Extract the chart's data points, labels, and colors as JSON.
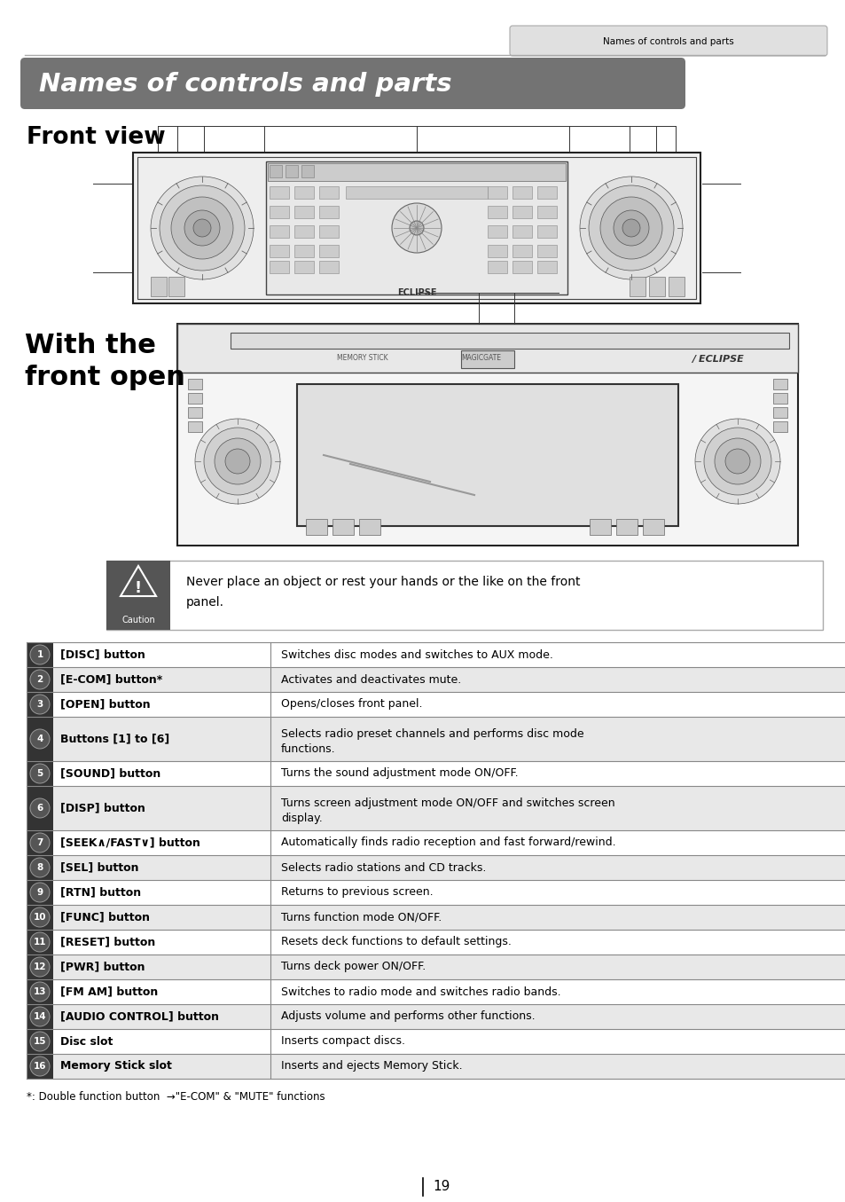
{
  "page_header": "Names of controls and parts",
  "chapter_title": "Names of controls and parts",
  "section1_title": "Front view",
  "section2_title": "With the\nfront open",
  "caution_text": "Never place an object or rest your hands or the like on the front panel.",
  "footnote": "*: Double function button  →\"E-COM\" & \"MUTE\" functions",
  "page_number": "19",
  "table_rows": [
    {
      "num": "1",
      "label": "[DISC] button",
      "desc": "Switches disc modes and switches to AUX mode.",
      "tall": false
    },
    {
      "num": "2",
      "label": "[E-COM] button*",
      "desc": "Activates and deactivates mute.",
      "tall": false
    },
    {
      "num": "3",
      "label": "[OPEN] button",
      "desc": "Opens/closes front panel.",
      "tall": false
    },
    {
      "num": "4",
      "label": "Buttons [1] to [6]",
      "desc": "Selects radio preset channels and performs disc mode\nfunctions.",
      "tall": true
    },
    {
      "num": "5",
      "label": "[SOUND] button",
      "desc": "Turns the sound adjustment mode ON/OFF.",
      "tall": false
    },
    {
      "num": "6",
      "label": "[DISP] button",
      "desc": "Turns screen adjustment mode ON/OFF and switches screen\ndisplay.",
      "tall": true
    },
    {
      "num": "7",
      "label": "[SEEK∧/FAST∨] button",
      "desc": "Automatically finds radio reception and fast forward/rewind.",
      "tall": false
    },
    {
      "num": "8",
      "label": "[SEL] button",
      "desc": "Selects radio stations and CD tracks.",
      "tall": false
    },
    {
      "num": "9",
      "label": "[RTN] button",
      "desc": "Returns to previous screen.",
      "tall": false
    },
    {
      "num": "10",
      "label": "[FUNC] button",
      "desc": "Turns function mode ON/OFF.",
      "tall": false
    },
    {
      "num": "11",
      "label": "[RESET] button",
      "desc": "Resets deck functions to default settings.",
      "tall": false
    },
    {
      "num": "12",
      "label": "[PWR] button",
      "desc": "Turns deck power ON/OFF.",
      "tall": false
    },
    {
      "num": "13",
      "label": "[FM AM] button",
      "desc": "Switches to radio mode and switches radio bands.",
      "tall": false
    },
    {
      "num": "14",
      "label": "[AUDIO CONTROL] button",
      "desc": "Adjusts volume and performs other functions.",
      "tall": false
    },
    {
      "num": "15",
      "label": "Disc slot",
      "desc": "Inserts compact discs.",
      "tall": false
    },
    {
      "num": "16",
      "label": "Memory Stick slot",
      "desc": "Inserts and ejects Memory Stick.",
      "tall": false
    }
  ],
  "bg_color": "#ffffff",
  "header_bg": "#737373",
  "header_text_color": "#ffffff",
  "table_row_bg_even": "#e8e8e8",
  "table_row_bg_odd": "#ffffff",
  "tab_bg": "#e0e0e0",
  "caution_icon_bg": "#555555",
  "line_color": "#888888"
}
